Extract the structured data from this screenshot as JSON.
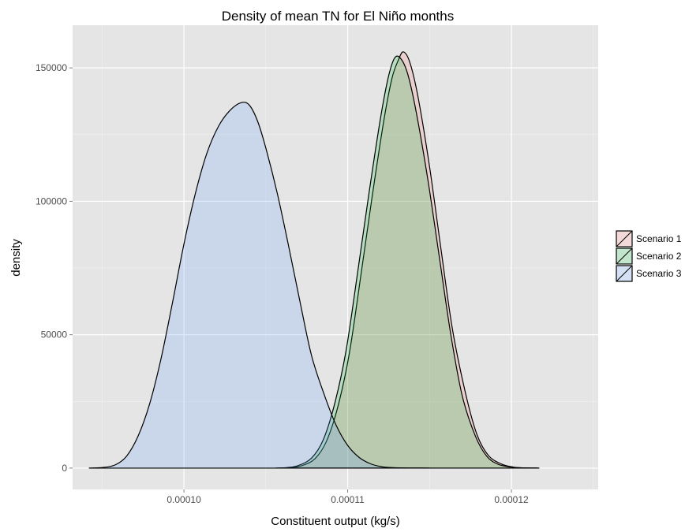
{
  "chart_data": {
    "type": "area",
    "title": "Density of mean TN for El Niño months",
    "xlabel": "Constituent output (kg/s)",
    "ylabel": "density",
    "xlim": [
      9.32e-05,
      0.0001253
    ],
    "ylim": [
      -8000,
      166000
    ],
    "x_ticks": [
      0.0001,
      0.00011,
      0.00012
    ],
    "x_tick_labels": [
      "0.00010",
      "0.00011",
      "0.00012"
    ],
    "y_ticks": [
      0,
      50000,
      100000,
      150000
    ],
    "y_tick_labels": [
      "0",
      "50000",
      "100000",
      "150000"
    ],
    "grid": true,
    "legend_position": "right",
    "colors": {
      "panel_background": "#e5e5e5",
      "grid": "#ffffff",
      "outline": "#000000"
    },
    "series": [
      {
        "name": "Scenario 1",
        "fill": "#f8766d",
        "x": [
          0.0001058,
          0.0001065,
          0.0001072,
          0.000108,
          0.0001087,
          0.0001094,
          0.0001101,
          0.0001108,
          0.0001115,
          0.0001122,
          0.0001127,
          0.0001131,
          0.0001134,
          0.0001138,
          0.0001143,
          0.000115,
          0.0001157,
          0.0001164,
          0.0001172,
          0.0001179,
          0.0001186,
          0.0001194,
          0.0001201,
          0.0001208,
          0.0001217
        ],
        "values": [
          0,
          150,
          900,
          3500,
          10000,
          23000,
          43000,
          72000,
          102000,
          130000,
          146000,
          153000,
          156000,
          152000,
          139000,
          113000,
          82000,
          52000,
          28000,
          12500,
          4700,
          1500,
          400,
          80,
          0
        ]
      },
      {
        "name": "Scenario 2",
        "fill": "#00ba38",
        "x": [
          0.0001056,
          0.0001063,
          0.000107,
          0.0001078,
          0.0001085,
          0.0001092,
          0.0001099,
          0.0001106,
          0.0001113,
          0.000112,
          0.0001125,
          0.0001129,
          0.0001133,
          0.0001137,
          0.0001142,
          0.0001149,
          0.0001156,
          0.0001163,
          0.000117,
          0.0001178,
          0.0001185,
          0.0001192,
          0.00012,
          0.0001207,
          0.0001216
        ],
        "values": [
          0,
          200,
          1000,
          3800,
          10500,
          24000,
          44000,
          73000,
          103000,
          131000,
          147000,
          154000,
          153000,
          147000,
          133000,
          108000,
          79000,
          50000,
          27000,
          12000,
          4400,
          1400,
          350,
          70,
          0
        ]
      },
      {
        "name": "Scenario 3",
        "fill": "#619cff",
        "x": [
          9.42e-05,
          9.5e-05,
          9.58e-05,
          9.65e-05,
          9.72e-05,
          9.79e-05,
          9.86e-05,
          9.93e-05,
          0.0001,
          0.0001007,
          0.0001014,
          0.0001021,
          0.0001028,
          0.0001035,
          0.000104,
          0.0001045,
          0.000105,
          0.0001057,
          0.0001064,
          0.0001071,
          0.0001078,
          0.0001086,
          0.0001093,
          0.00011,
          0.0001107,
          0.0001114,
          0.0001121,
          0.0001128,
          0.0001135,
          0.0001142,
          0.000115
        ],
        "values": [
          0,
          200,
          1200,
          4500,
          12000,
          24000,
          41000,
          62000,
          84000,
          103000,
          118000,
          128000,
          134000,
          137000,
          136000,
          130000,
          120000,
          103000,
          83000,
          62000,
          42000,
          27000,
          16000,
          8500,
          4000,
          1600,
          500,
          150,
          40,
          10,
          0
        ]
      }
    ]
  }
}
